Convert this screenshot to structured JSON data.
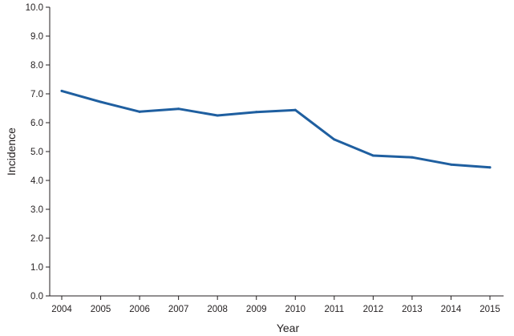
{
  "chart_data": {
    "type": "line",
    "xlabel": "Year",
    "ylabel": "Incidence",
    "ylim": [
      0,
      10
    ],
    "yticks": [
      "0.0",
      "1.0",
      "2.0",
      "3.0",
      "4.0",
      "5.0",
      "6.0",
      "7.0",
      "8.0",
      "9.0",
      "10.0"
    ],
    "grid": false,
    "x": [
      "2004",
      "2005",
      "2006",
      "2007",
      "2008",
      "2009",
      "2010",
      "2011",
      "2012",
      "2013",
      "2014",
      "2015"
    ],
    "series": [
      {
        "values": [
          7.1,
          6.72,
          6.38,
          6.48,
          6.25,
          6.37,
          6.44,
          5.42,
          4.86,
          4.8,
          4.55,
          4.45
        ],
        "color": "#1f5fa0"
      }
    ]
  }
}
